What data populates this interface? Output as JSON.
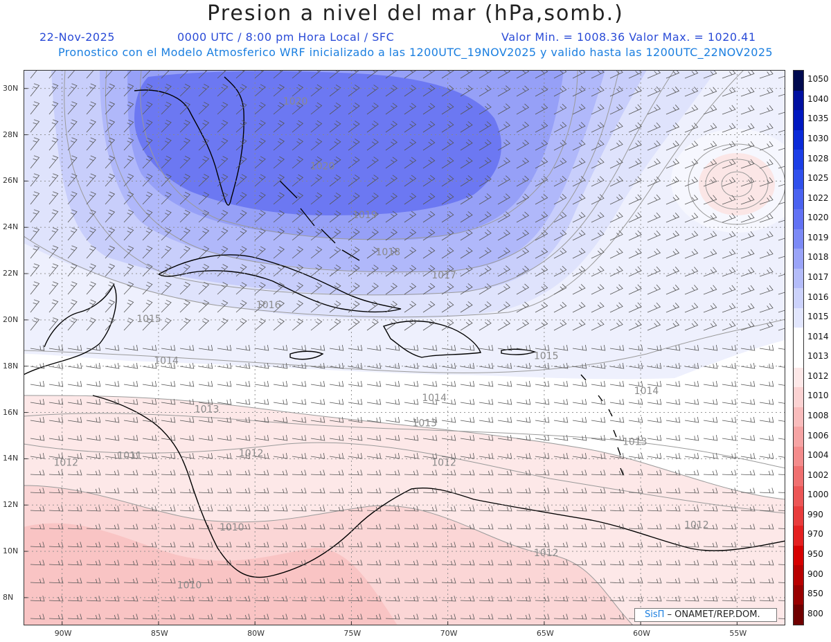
{
  "title": "Presion a nivel del mar (hPa,somb.)",
  "header": {
    "date": "22-Nov-2025",
    "time": "0000 UTC / 8:00 pm Hora Local / SFC",
    "min_max": "Valor Min. = 1008.36  Valor Max. = 1020.41",
    "forecast": "Pronostico con el Modelo Atmosferico WRF inicializado a las 1200UTC_19NOV2025 y valido hasta las  1200UTC_22NOV2025"
  },
  "map": {
    "lon_range": [
      -92.0,
      -52.5
    ],
    "lat_range": [
      6.8,
      30.8
    ],
    "x_ticks": [
      "90W",
      "85W",
      "80W",
      "75W",
      "70W",
      "65W",
      "60W",
      "55W"
    ],
    "x_tick_values": [
      -90,
      -85,
      -80,
      -75,
      -70,
      -65,
      -60,
      -55
    ],
    "y_ticks": [
      "30N",
      "28N",
      "26N",
      "24N",
      "22N",
      "20N",
      "18N",
      "16N",
      "14N",
      "12N",
      "10N",
      "8N"
    ],
    "y_tick_values": [
      30,
      28,
      26,
      24,
      22,
      20,
      18,
      16,
      14,
      12,
      10,
      8
    ],
    "contour_labels": [
      {
        "text": "1020",
        "lon": -77.9,
        "lat": 29.3
      },
      {
        "text": "1020",
        "lon": -76.5,
        "lat": 26.5
      },
      {
        "text": "1019",
        "lon": -74.3,
        "lat": 24.4
      },
      {
        "text": "1018",
        "lon": -73.1,
        "lat": 22.8
      },
      {
        "text": "1017",
        "lon": -70.2,
        "lat": 21.8
      },
      {
        "text": "1016",
        "lon": -79.3,
        "lat": 20.5
      },
      {
        "text": "1015",
        "lon": -85.5,
        "lat": 19.9
      },
      {
        "text": "1015",
        "lon": -64.9,
        "lat": 18.3
      },
      {
        "text": "1014",
        "lon": -84.6,
        "lat": 18.1
      },
      {
        "text": "1014",
        "lon": -70.7,
        "lat": 16.5
      },
      {
        "text": "1014",
        "lon": -59.7,
        "lat": 16.8
      },
      {
        "text": "1013",
        "lon": -82.5,
        "lat": 16.0
      },
      {
        "text": "1013",
        "lon": -71.2,
        "lat": 15.4
      },
      {
        "text": "1013",
        "lon": -60.3,
        "lat": 14.6
      },
      {
        "text": "1012",
        "lon": -80.2,
        "lat": 14.1
      },
      {
        "text": "1012",
        "lon": -89.8,
        "lat": 13.7
      },
      {
        "text": "1012",
        "lon": -70.2,
        "lat": 13.7
      },
      {
        "text": "1012",
        "lon": -57.1,
        "lat": 11.0
      },
      {
        "text": "1012",
        "lon": -64.9,
        "lat": 9.8
      },
      {
        "text": "1011",
        "lon": -86.5,
        "lat": 14.0
      },
      {
        "text": "1010",
        "lon": -81.2,
        "lat": 10.9
      },
      {
        "text": "1010",
        "lon": -83.4,
        "lat": 8.4
      }
    ]
  },
  "legend": {
    "labels": [
      "1050",
      "1040",
      "1035",
      "1030",
      "1028",
      "1025",
      "1022",
      "1020",
      "1019",
      "1018",
      "1017",
      "1016",
      "1015",
      "1014",
      "1013",
      "1012",
      "1010",
      "1008",
      "1006",
      "1004",
      "1002",
      "1000",
      "990",
      "970",
      "950",
      "900",
      "850",
      "800"
    ],
    "colors": [
      "#000a4f",
      "#0010a0",
      "#0018c0",
      "#0a2ad8",
      "#1c3ee6",
      "#3050ec",
      "#4a62f0",
      "#6272f4",
      "#7c8af6",
      "#9aa4f8",
      "#b4bcf9",
      "#ccd2fb",
      "#e2e6fd",
      "#ffffff",
      "#ffffff",
      "#fde8e8",
      "#fbd2d2",
      "#f9bcbc",
      "#f6a4a4",
      "#f48c8c",
      "#f07070",
      "#ec5656",
      "#e83c3c",
      "#e42020",
      "#d60000",
      "#b80000",
      "#980000",
      "#700000"
    ]
  },
  "credit": {
    "brand": "SisΠ",
    "text": " – ONAMET/REP.DOM."
  },
  "colors": {
    "title_text": "#222222",
    "header_blue": "#2a4bd7",
    "forecast_blue": "#1b7fe0"
  }
}
